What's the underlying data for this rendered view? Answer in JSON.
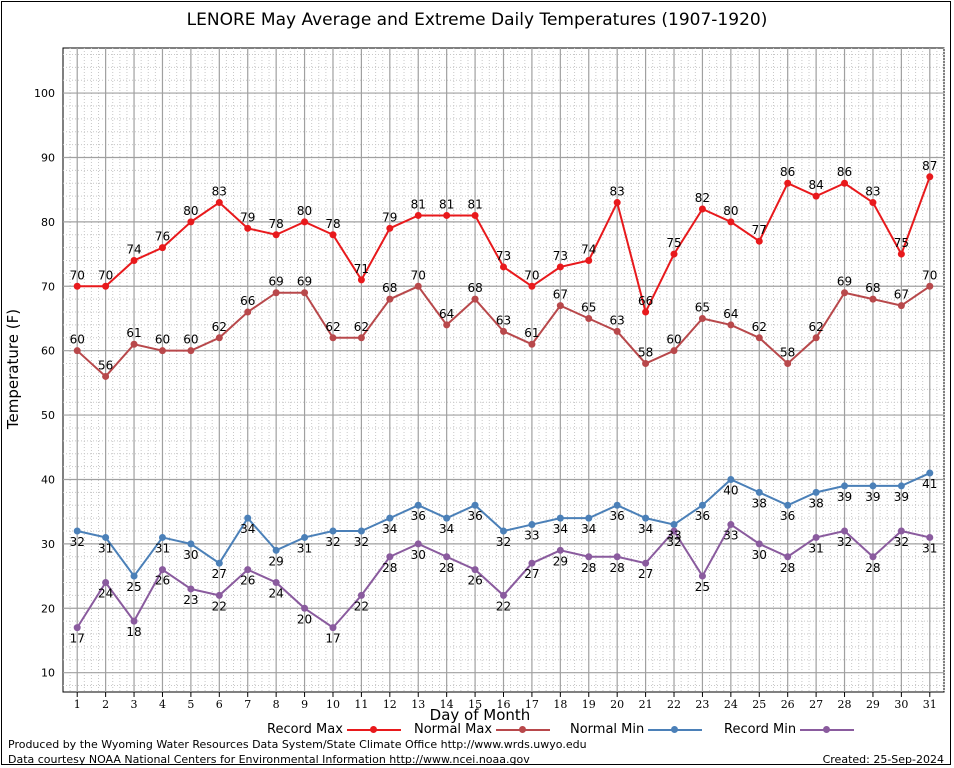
{
  "chart_data": {
    "type": "line",
    "title": "LENORE May Average and Extreme Daily Temperatures (1907-1920)",
    "xlabel": "Day of Month",
    "ylabel": "Temperature (F)",
    "x": [
      1,
      2,
      3,
      4,
      5,
      6,
      7,
      8,
      9,
      10,
      11,
      12,
      13,
      14,
      15,
      16,
      17,
      18,
      19,
      20,
      21,
      22,
      23,
      24,
      25,
      26,
      27,
      28,
      29,
      30,
      31
    ],
    "xlim": [
      0.5,
      31.5
    ],
    "ylim": [
      7,
      107
    ],
    "yticks": [
      10,
      20,
      30,
      40,
      50,
      60,
      70,
      80,
      90,
      100
    ],
    "grid": true,
    "legend_position": "bottom",
    "series": [
      {
        "name": "Record Max",
        "color": "#e8191c",
        "label_pos": "above",
        "values": [
          70,
          70,
          74,
          76,
          80,
          83,
          79,
          78,
          80,
          78,
          71,
          79,
          81,
          81,
          81,
          73,
          70,
          73,
          74,
          83,
          66,
          75,
          82,
          80,
          77,
          86,
          84,
          86,
          83,
          75,
          87
        ]
      },
      {
        "name": "Normal Max",
        "color": "#b8484b",
        "label_pos": "above",
        "values": [
          60,
          56,
          61,
          60,
          60,
          62,
          66,
          69,
          69,
          62,
          62,
          68,
          70,
          64,
          68,
          63,
          61,
          67,
          65,
          63,
          58,
          60,
          65,
          64,
          62,
          58,
          62,
          69,
          68,
          67,
          70
        ]
      },
      {
        "name": "Normal Min",
        "color": "#4b80b8",
        "label_pos": "below",
        "values": [
          32,
          31,
          25,
          31,
          30,
          27,
          34,
          29,
          31,
          32,
          32,
          34,
          36,
          34,
          36,
          32,
          33,
          34,
          34,
          36,
          34,
          33,
          36,
          40,
          38,
          36,
          38,
          39,
          39,
          39,
          41
        ]
      },
      {
        "name": "Record Min",
        "color": "#8a5b9e",
        "label_pos": "below",
        "values": [
          17,
          24,
          18,
          26,
          23,
          22,
          26,
          24,
          20,
          17,
          22,
          28,
          30,
          28,
          26,
          22,
          27,
          29,
          28,
          28,
          27,
          32,
          25,
          33,
          30,
          28,
          31,
          32,
          28,
          32,
          31
        ]
      }
    ]
  },
  "footer": {
    "credit_line_1": "Produced by the Wyoming Water Resources Data System/State Climate Office http://www.wrds.uwyo.edu",
    "credit_line_2": "Data courtesy NOAA National Centers for Environmental Information http://www.ncei.noaa.gov",
    "created": "Created:  25-Sep-2024"
  }
}
